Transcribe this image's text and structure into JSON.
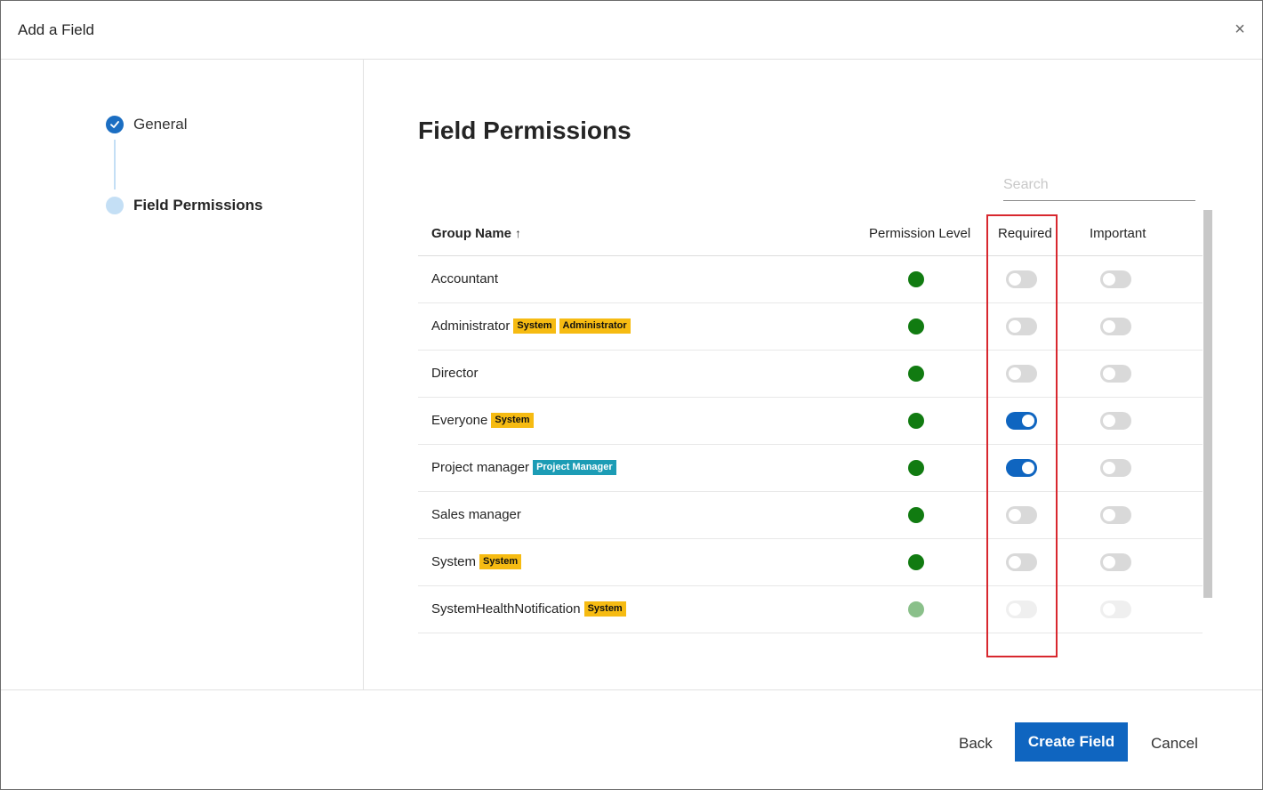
{
  "dialog": {
    "title": "Add a Field",
    "close_icon": "close-icon"
  },
  "steps": [
    {
      "label": "General",
      "status": "done"
    },
    {
      "label": "Field Permissions",
      "status": "current"
    }
  ],
  "main": {
    "title": "Field Permissions",
    "search_placeholder": "Search"
  },
  "table": {
    "columns": {
      "group_name": "Group Name",
      "permission_level": "Permission Level",
      "required": "Required",
      "important": "Important"
    },
    "sort_icon": "sort-ascending-icon",
    "rows": [
      {
        "name": "Accountant",
        "badges": [],
        "permission_color": "#117b11",
        "required": false,
        "important": false,
        "disabled": false
      },
      {
        "name": "Administrator",
        "badges": [
          "System",
          "Administrator"
        ],
        "permission_color": "#117b11",
        "required": false,
        "important": false,
        "disabled": false
      },
      {
        "name": "Director",
        "badges": [],
        "permission_color": "#117b11",
        "required": false,
        "important": false,
        "disabled": false
      },
      {
        "name": "Everyone",
        "badges": [
          "System"
        ],
        "permission_color": "#117b11",
        "required": true,
        "important": false,
        "disabled": false
      },
      {
        "name": "Project manager",
        "badges": [
          "Project Manager"
        ],
        "permission_color": "#117b11",
        "required": true,
        "important": false,
        "disabled": false
      },
      {
        "name": "Sales manager",
        "badges": [],
        "permission_color": "#117b11",
        "required": false,
        "important": false,
        "disabled": false
      },
      {
        "name": "System",
        "badges": [
          "System"
        ],
        "permission_color": "#117b11",
        "required": false,
        "important": false,
        "disabled": false
      },
      {
        "name": "SystemHealthNotification",
        "badges": [
          "System"
        ],
        "permission_color": "#8ac08a",
        "required": false,
        "important": false,
        "disabled": true
      }
    ]
  },
  "footer": {
    "back_label": "Back",
    "create_label": "Create Field",
    "cancel_label": "Cancel"
  },
  "colors": {
    "accent": "#0f65c0",
    "permission_green": "#117b11",
    "badge_yellow": "#f6bb12",
    "badge_teal": "#1c9cb5",
    "highlight_red": "#d8282f"
  }
}
